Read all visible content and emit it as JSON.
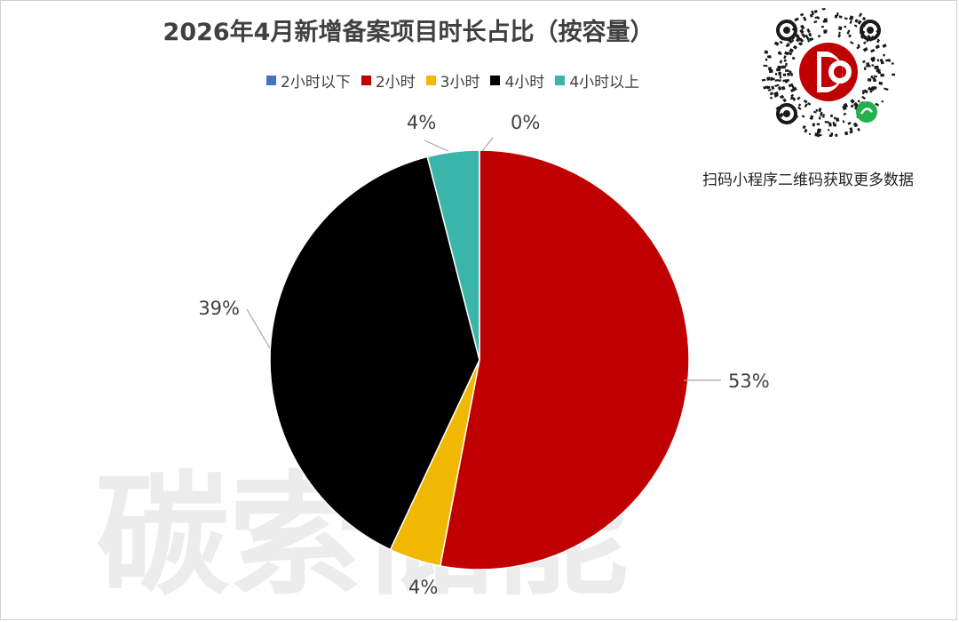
{
  "title": "2026年4月新增备案项目时长占比（按容量）",
  "qr_caption": "扫码小程序二维码获取更多数据",
  "watermark": "碳索储能",
  "chart_data": {
    "type": "pie",
    "title": "2026年4月新增备案项目时长占比（按容量）",
    "legend_position": "top",
    "slices": [
      {
        "name": "2小时以下",
        "value": 0,
        "label": "0%",
        "color": "#4472C4"
      },
      {
        "name": "2小时",
        "value": 53,
        "label": "53%",
        "color": "#C00000"
      },
      {
        "name": "3小时",
        "value": 4,
        "label": "4%",
        "color": "#F0B800"
      },
      {
        "name": "4小时",
        "value": 39,
        "label": "39%",
        "color": "#000000"
      },
      {
        "name": "4小时以上",
        "value": 4,
        "label": "4%",
        "color": "#3AB5AB"
      }
    ]
  }
}
